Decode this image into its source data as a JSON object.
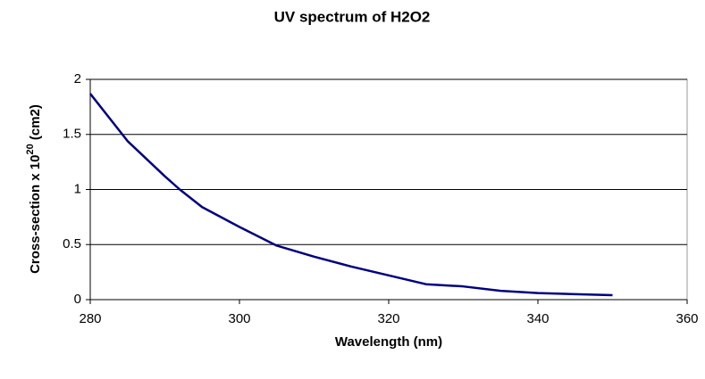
{
  "chart_data": {
    "type": "line",
    "title": "UV spectrum of H2O2",
    "xlabel": "Wavelength (nm)",
    "ylabel": {
      "text": "Cross-section x 10",
      "superscript": "20",
      "suffix": " (cm2)"
    },
    "x": [
      280,
      285,
      290,
      292,
      295,
      300,
      305,
      310,
      315,
      320,
      325,
      330,
      335,
      340,
      345,
      350
    ],
    "series": [
      {
        "name": "H2O2",
        "color": "#000080",
        "values": [
          1.87,
          1.44,
          1.12,
          1.0,
          0.84,
          0.66,
          0.49,
          0.39,
          0.3,
          0.22,
          0.14,
          0.12,
          0.08,
          0.06,
          0.05,
          0.04
        ]
      }
    ],
    "xlim": [
      280,
      360
    ],
    "xticks": [
      280,
      300,
      320,
      340,
      360
    ],
    "ylim": [
      0,
      2
    ],
    "yticks": [
      0,
      0.5,
      1,
      1.5,
      2
    ],
    "grid": true
  }
}
